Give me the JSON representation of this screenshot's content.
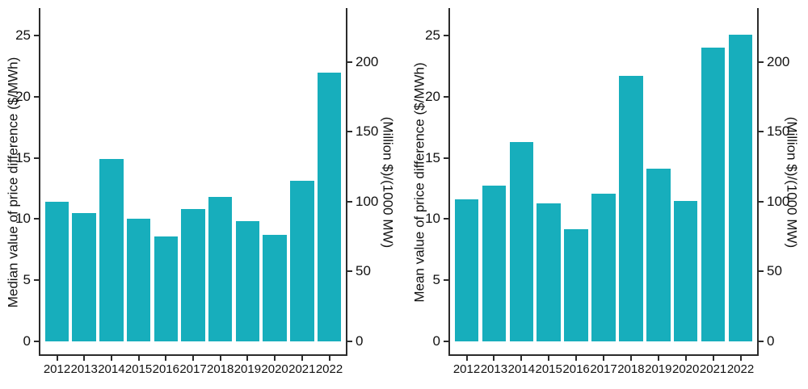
{
  "figure": {
    "background": "#ffffff",
    "bar_color": "#17aebc",
    "axis_color": "#2b2b2b",
    "text_color": "#111111"
  },
  "chart_data": [
    {
      "type": "bar",
      "name": "median",
      "title": "",
      "ylabel_left": "Median value of price difference ($/MWh)",
      "ylabel_right": "(Million $)/(1000 MW)",
      "xlabel": "",
      "categories": [
        "2012",
        "2013",
        "2014",
        "2015",
        "2016",
        "2017",
        "2018",
        "2019",
        "2020",
        "2021",
        "2022"
      ],
      "values": [
        11.4,
        10.5,
        14.9,
        10.0,
        8.6,
        10.8,
        11.8,
        9.8,
        8.7,
        13.1,
        22.0
      ],
      "left_axis_ticks": [
        0,
        5,
        10,
        15,
        20,
        25
      ],
      "right_axis_ticks": [
        0,
        50,
        100,
        150,
        200
      ],
      "left_axis_range": [
        0,
        27.2
      ],
      "right_axis_range": [
        0,
        238.3
      ],
      "right_to_left_factor": 8.76,
      "grid": false,
      "legend": "none",
      "bar_color": "#17aebc"
    },
    {
      "type": "bar",
      "name": "mean",
      "title": "",
      "ylabel_left": "Mean value of price difference ($/MWh)",
      "ylabel_right": "(Million $)/(1000 MW)",
      "xlabel": "",
      "categories": [
        "2012",
        "2013",
        "2014",
        "2015",
        "2016",
        "2017",
        "2018",
        "2019",
        "2020",
        "2021",
        "2022"
      ],
      "values": [
        11.6,
        12.7,
        16.3,
        11.3,
        9.2,
        12.1,
        21.7,
        14.1,
        11.5,
        24.0,
        25.1
      ],
      "left_axis_ticks": [
        0,
        5,
        10,
        15,
        20,
        25
      ],
      "right_axis_ticks": [
        0,
        50,
        100,
        150,
        200
      ],
      "left_axis_range": [
        0,
        27.2
      ],
      "right_axis_range": [
        0,
        238.3
      ],
      "right_to_left_factor": 8.76,
      "grid": false,
      "legend": "none",
      "bar_color": "#17aebc"
    }
  ]
}
